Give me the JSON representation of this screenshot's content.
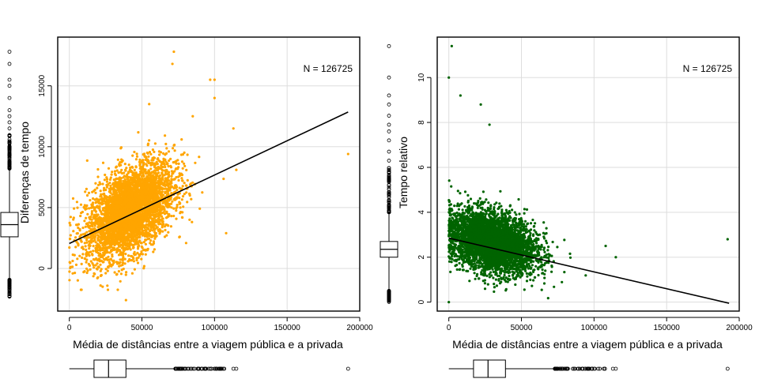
{
  "chart_data": [
    {
      "type": "scatter",
      "color": "#ffa500",
      "xlabel": "Média de distâncias entre a viagem pública e a privada",
      "ylabel": "Diferenças de tempo",
      "annotation": "N = 126725",
      "xlim": [
        -8000,
        200000
      ],
      "ylim": [
        -3500,
        19000
      ],
      "xticks": [
        0,
        50000,
        100000,
        150000,
        200000
      ],
      "xtick_labels": [
        "0",
        "50000",
        "100000",
        "150000",
        "200000"
      ],
      "yticks": [
        0,
        5000,
        10000,
        15000
      ],
      "ytick_labels": [
        "0",
        "5000",
        "10000",
        "15000"
      ],
      "grid": true,
      "regression_line": {
        "x": [
          0,
          192000
        ],
        "y": [
          2050,
          12850
        ]
      },
      "cloud": {
        "x_center": 42000,
        "x_spread": 15000,
        "y_intercept": 2000,
        "y_slope": 0.065,
        "y_spread": 1700
      },
      "outliers": [
        {
          "x": 39000,
          "y": -2600
        },
        {
          "x": 72000,
          "y": 17800
        },
        {
          "x": 71000,
          "y": 16800
        },
        {
          "x": 97000,
          "y": 15500
        },
        {
          "x": 100000,
          "y": 15500
        },
        {
          "x": 100000,
          "y": 14000
        },
        {
          "x": 192000,
          "y": 9400
        },
        {
          "x": 113000,
          "y": 11500
        },
        {
          "x": 115000,
          "y": 8100
        },
        {
          "x": 108000,
          "y": 2900
        },
        {
          "x": 55000,
          "y": 13500
        },
        {
          "x": 85000,
          "y": 12500
        }
      ],
      "x_boxplot": {
        "min": 0,
        "q1": 17000,
        "median": 27000,
        "q3": 39000,
        "whisker_high": 73000,
        "outlier_range": [
          73000,
          108000
        ],
        "far_outliers": [
          113000,
          115000,
          192000
        ]
      },
      "y_boxplot": {
        "whisker_low": -900,
        "q1": 2600,
        "median": 3600,
        "q3": 4600,
        "whisker_high": 8200,
        "low_outlier_range": [
          -2600,
          -900
        ],
        "high_outlier_range": [
          8200,
          11000
        ],
        "far_outliers": [
          11500,
          12000,
          12500,
          13000,
          14000,
          15000,
          15500,
          16800,
          17800
        ]
      }
    },
    {
      "type": "scatter",
      "color": "#006400",
      "xlabel": "Média de distâncias entre a viagem pública e a privada",
      "ylabel": "Tempo relativo",
      "annotation": "N = 126725",
      "xlim": [
        -8000,
        200000
      ],
      "ylim": [
        -0.4,
        11.8
      ],
      "xticks": [
        0,
        50000,
        100000,
        150000,
        200000
      ],
      "xtick_labels": [
        "0",
        "50000",
        "100000",
        "150000",
        "200000"
      ],
      "yticks": [
        0,
        2,
        4,
        6,
        8,
        10
      ],
      "ytick_labels": [
        "0",
        "2",
        "4",
        "6",
        "8",
        "10"
      ],
      "grid": true,
      "regression_line": {
        "x": [
          0,
          193000
        ],
        "y": [
          2.85,
          -0.05
        ]
      },
      "cloud": {
        "x_center": 30000,
        "x_spread": 15000,
        "y_intercept": 3.1,
        "y_slope": -1.4e-05,
        "y_spread": 0.65
      },
      "outliers": [
        {
          "x": 2000,
          "y": 11.4
        },
        {
          "x": 0,
          "y": 10
        },
        {
          "x": 8000,
          "y": 9.2
        },
        {
          "x": 22000,
          "y": 8.8
        },
        {
          "x": 28000,
          "y": 7.9
        },
        {
          "x": 192000,
          "y": 2.8
        },
        {
          "x": 115000,
          "y": 2.0
        },
        {
          "x": 108000,
          "y": 2.5
        },
        {
          "x": 0,
          "y": 0
        }
      ],
      "x_boxplot": {
        "min": 0,
        "q1": 17000,
        "median": 27000,
        "q3": 39000,
        "whisker_high": 73000,
        "outlier_range": [
          73000,
          108000
        ],
        "far_outliers": [
          113000,
          115000,
          192000
        ]
      },
      "y_boxplot": {
        "whisker_low": 0.5,
        "q1": 2.0,
        "median": 2.35,
        "q3": 2.7,
        "whisker_high": 4.0,
        "low_outlier_range": [
          0,
          0.5
        ],
        "high_outlier_range": [
          4.0,
          6.0
        ],
        "far_outliers": [
          6.3,
          6.7,
          7.2,
          7.6,
          7.9,
          8.3,
          8.8,
          9.2,
          10,
          11.4
        ]
      }
    }
  ]
}
